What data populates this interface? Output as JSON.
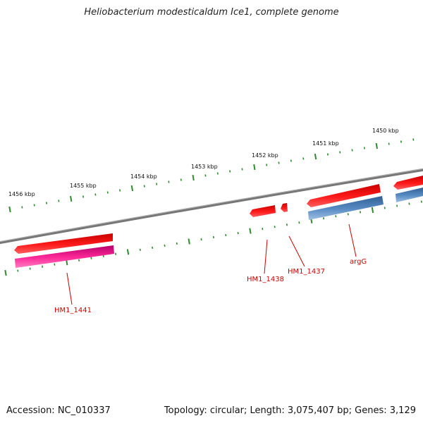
{
  "title": "Heliobacterium modesticaldum Ice1, complete genome",
  "accession": "Accession: NC_010337",
  "summary": "Topology: circular; Length: 3,075,407 bp; Genes: 3,129",
  "colors": {
    "backbone": "#8a8a8a",
    "tick": "#2e8b2e",
    "gene_red": "#ee1111",
    "gene_pink": "#ee2288",
    "gene_blue": "#4f7fb5",
    "label": "#cc0000"
  },
  "kbp_labels": [
    "1456 kbp",
    "1455 kbp",
    "1454 kbp",
    "1453 kbp",
    "1452 kbp",
    "1451 kbp",
    "1450 kbp"
  ],
  "genes": [
    {
      "label": "HM1_1441"
    },
    {
      "label": "HM1_1438"
    },
    {
      "label": "HM1_1437"
    },
    {
      "label": "argG"
    }
  ]
}
